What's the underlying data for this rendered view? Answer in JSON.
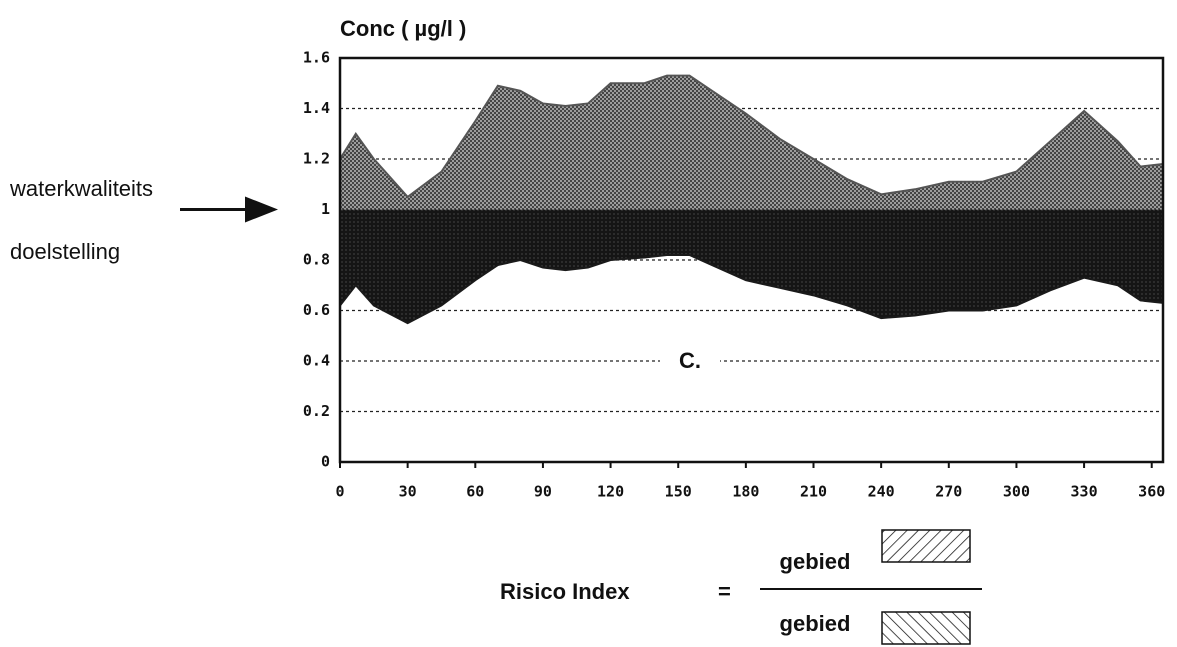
{
  "chart_data": {
    "type": "area",
    "ylabel": "Conc ( µg/l )",
    "annotation": "C.",
    "target": {
      "value": 1,
      "label": [
        "waterkwaliteits",
        "doelstelling"
      ]
    },
    "formula": {
      "left": "Risico Index",
      "sign": "=",
      "numerator": "gebied",
      "denominator": "gebied"
    },
    "x": [
      0,
      7,
      15,
      30,
      45,
      60,
      70,
      80,
      90,
      100,
      110,
      120,
      135,
      145,
      155,
      165,
      180,
      195,
      210,
      225,
      240,
      255,
      270,
      285,
      300,
      315,
      330,
      345,
      355,
      365
    ],
    "series": [
      {
        "color": "#555555",
        "values": [
          1.2,
          1.3,
          1.2,
          1.05,
          1.15,
          1.35,
          1.49,
          1.47,
          1.42,
          1.41,
          1.42,
          1.5,
          1.5,
          1.53,
          1.53,
          1.47,
          1.38,
          1.28,
          1.2,
          1.12,
          1.06,
          1.08,
          1.11,
          1.11,
          1.15,
          1.27,
          1.39,
          1.27,
          1.17,
          1.18
        ]
      },
      {
        "color": "#1a1a1a",
        "values": [
          0.62,
          0.7,
          0.62,
          0.55,
          0.62,
          0.72,
          0.78,
          0.8,
          0.77,
          0.76,
          0.77,
          0.8,
          0.81,
          0.82,
          0.82,
          0.78,
          0.72,
          0.69,
          0.66,
          0.62,
          0.57,
          0.58,
          0.6,
          0.6,
          0.62,
          0.68,
          0.73,
          0.7,
          0.64,
          0.63
        ]
      }
    ],
    "xlim": [
      0,
      365
    ],
    "xticks": [
      0,
      30,
      60,
      90,
      120,
      150,
      180,
      210,
      240,
      270,
      300,
      330,
      360
    ],
    "ylim": [
      0,
      1.6
    ],
    "yticks": [
      0,
      0.2,
      0.4,
      0.6,
      0.8,
      1,
      1.2,
      1.4,
      1.6
    ],
    "grid": true
  }
}
